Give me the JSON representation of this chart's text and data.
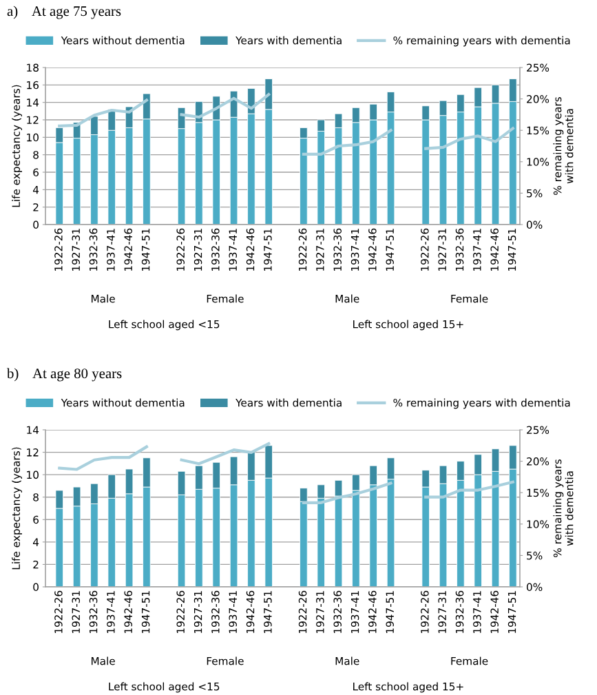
{
  "chart_data": [
    {
      "type": "bar",
      "title": "a)    At age 75 years",
      "ylabel": "Life expectancy (years)",
      "y2label": "% remaining years\nwith dementia",
      "categories": [
        "1922-26",
        "1927-31",
        "1932-36",
        "1937-41",
        "1942-46",
        "1947-51",
        null,
        "1922-26",
        "1927-31",
        "1932-36",
        "1937-41",
        "1942-46",
        "1947-51",
        null,
        "1922-26",
        "1927-31",
        "1932-36",
        "1937-41",
        "1942-46",
        "1947-51",
        null,
        "1922-26",
        "1927-31",
        "1932-36",
        "1937-41",
        "1942-46",
        "1947-51"
      ],
      "stacked": true,
      "series": [
        {
          "name": "Years without dementia",
          "color": "#4bacc6",
          "values": [
            9.4,
            9.9,
            10.3,
            10.8,
            11.1,
            12.1,
            null,
            11.0,
            11.7,
            12.0,
            12.3,
            12.7,
            13.2,
            null,
            9.9,
            10.7,
            11.1,
            11.7,
            12.0,
            12.9,
            null,
            12.0,
            12.5,
            12.9,
            13.5,
            13.9,
            14.1
          ]
        },
        {
          "name": "Years with dementia",
          "color": "#3a8ba2",
          "values": [
            1.7,
            1.8,
            2.1,
            2.4,
            2.4,
            2.9,
            null,
            2.4,
            2.4,
            2.7,
            3.0,
            2.9,
            3.5,
            null,
            1.2,
            1.3,
            1.6,
            1.7,
            1.8,
            2.3,
            null,
            1.6,
            1.7,
            2.0,
            2.2,
            2.1,
            2.6
          ]
        },
        {
          "name": "% remaining years with dementia",
          "type": "line",
          "axis": "y2",
          "color": "#a9d0dd",
          "values": [
            15.7,
            15.8,
            17.4,
            18.2,
            17.9,
            19.8,
            null,
            17.5,
            17.1,
            18.5,
            20.1,
            18.5,
            20.7,
            null,
            11.2,
            11.2,
            12.5,
            12.7,
            13.2,
            15.0,
            null,
            12.1,
            12.3,
            13.6,
            14.1,
            13.2,
            15.3
          ]
        }
      ],
      "ylim": [
        0,
        18
      ],
      "yticks": [
        0,
        2,
        4,
        6,
        8,
        10,
        12,
        14,
        16,
        18
      ],
      "y2lim": [
        0,
        25
      ],
      "y2ticks": [
        {
          "value": 0,
          "label": "0%"
        },
        {
          "value": 5,
          "label": "5%"
        },
        {
          "value": 10,
          "label": "10%"
        },
        {
          "value": 15,
          "label": "15%"
        },
        {
          "value": 20,
          "label": "20%"
        },
        {
          "value": 25,
          "label": "25%"
        }
      ],
      "grid": "y",
      "legend": "top",
      "annotations": [
        "Male",
        "Female",
        "Male",
        "Female",
        "Left school aged <15",
        "Left school aged 15+"
      ]
    },
    {
      "type": "bar",
      "title": "b)    At age 80 years",
      "ylabel": "Life expectancy (years)",
      "y2label": "% remaining years\nwith dementia",
      "categories": [
        "1922-26",
        "1927-31",
        "1932-36",
        "1937-41",
        "1942-46",
        "1947-51",
        null,
        "1922-26",
        "1927-31",
        "1932-36",
        "1937-41",
        "1942-46",
        "1947-51",
        null,
        "1922-26",
        "1927-31",
        "1932-36",
        "1937-41",
        "1942-46",
        "1947-51",
        null,
        "1922-26",
        "1927-31",
        "1932-36",
        "1937-41",
        "1942-46",
        "1947-51"
      ],
      "stacked": true,
      "series": [
        {
          "name": "Years without dementia",
          "color": "#4bacc6",
          "values": [
            7.0,
            7.2,
            7.4,
            7.9,
            8.3,
            8.9,
            null,
            8.2,
            8.7,
            8.8,
            9.1,
            9.5,
            9.7,
            null,
            7.6,
            7.9,
            8.1,
            8.6,
            9.1,
            9.6,
            null,
            8.9,
            9.2,
            9.5,
            10.0,
            10.3,
            10.5
          ]
        },
        {
          "name": "Years with dementia",
          "color": "#3a8ba2",
          "values": [
            1.6,
            1.7,
            1.8,
            2.1,
            2.2,
            2.6,
            null,
            2.1,
            2.1,
            2.3,
            2.5,
            2.6,
            2.9,
            null,
            1.2,
            1.2,
            1.4,
            1.4,
            1.7,
            1.9,
            null,
            1.5,
            1.6,
            1.7,
            1.8,
            2.0,
            2.1
          ]
        },
        {
          "name": "% remaining years with dementia",
          "type": "line",
          "axis": "y2",
          "color": "#a9d0dd",
          "values": [
            18.9,
            18.7,
            20.2,
            20.6,
            20.6,
            22.3,
            null,
            20.2,
            19.6,
            20.7,
            21.8,
            21.4,
            22.8,
            null,
            13.4,
            13.4,
            14.2,
            14.8,
            15.6,
            16.5,
            null,
            14.3,
            14.3,
            15.4,
            15.4,
            16.0,
            16.7
          ]
        }
      ],
      "ylim": [
        0,
        14
      ],
      "yticks": [
        0,
        2,
        4,
        6,
        8,
        10,
        12,
        14
      ],
      "y2lim": [
        0,
        25
      ],
      "y2ticks": [
        {
          "value": 0,
          "label": "0%"
        },
        {
          "value": 5,
          "label": "5%"
        },
        {
          "value": 10,
          "label": "10%"
        },
        {
          "value": 15,
          "label": "15%"
        },
        {
          "value": 20,
          "label": "20%"
        },
        {
          "value": 25,
          "label": "25%"
        }
      ],
      "grid": "y",
      "legend": "top",
      "annotations": [
        "Male",
        "Female",
        "Male",
        "Female",
        "Left school aged <15",
        "Left school aged 15+"
      ]
    }
  ]
}
